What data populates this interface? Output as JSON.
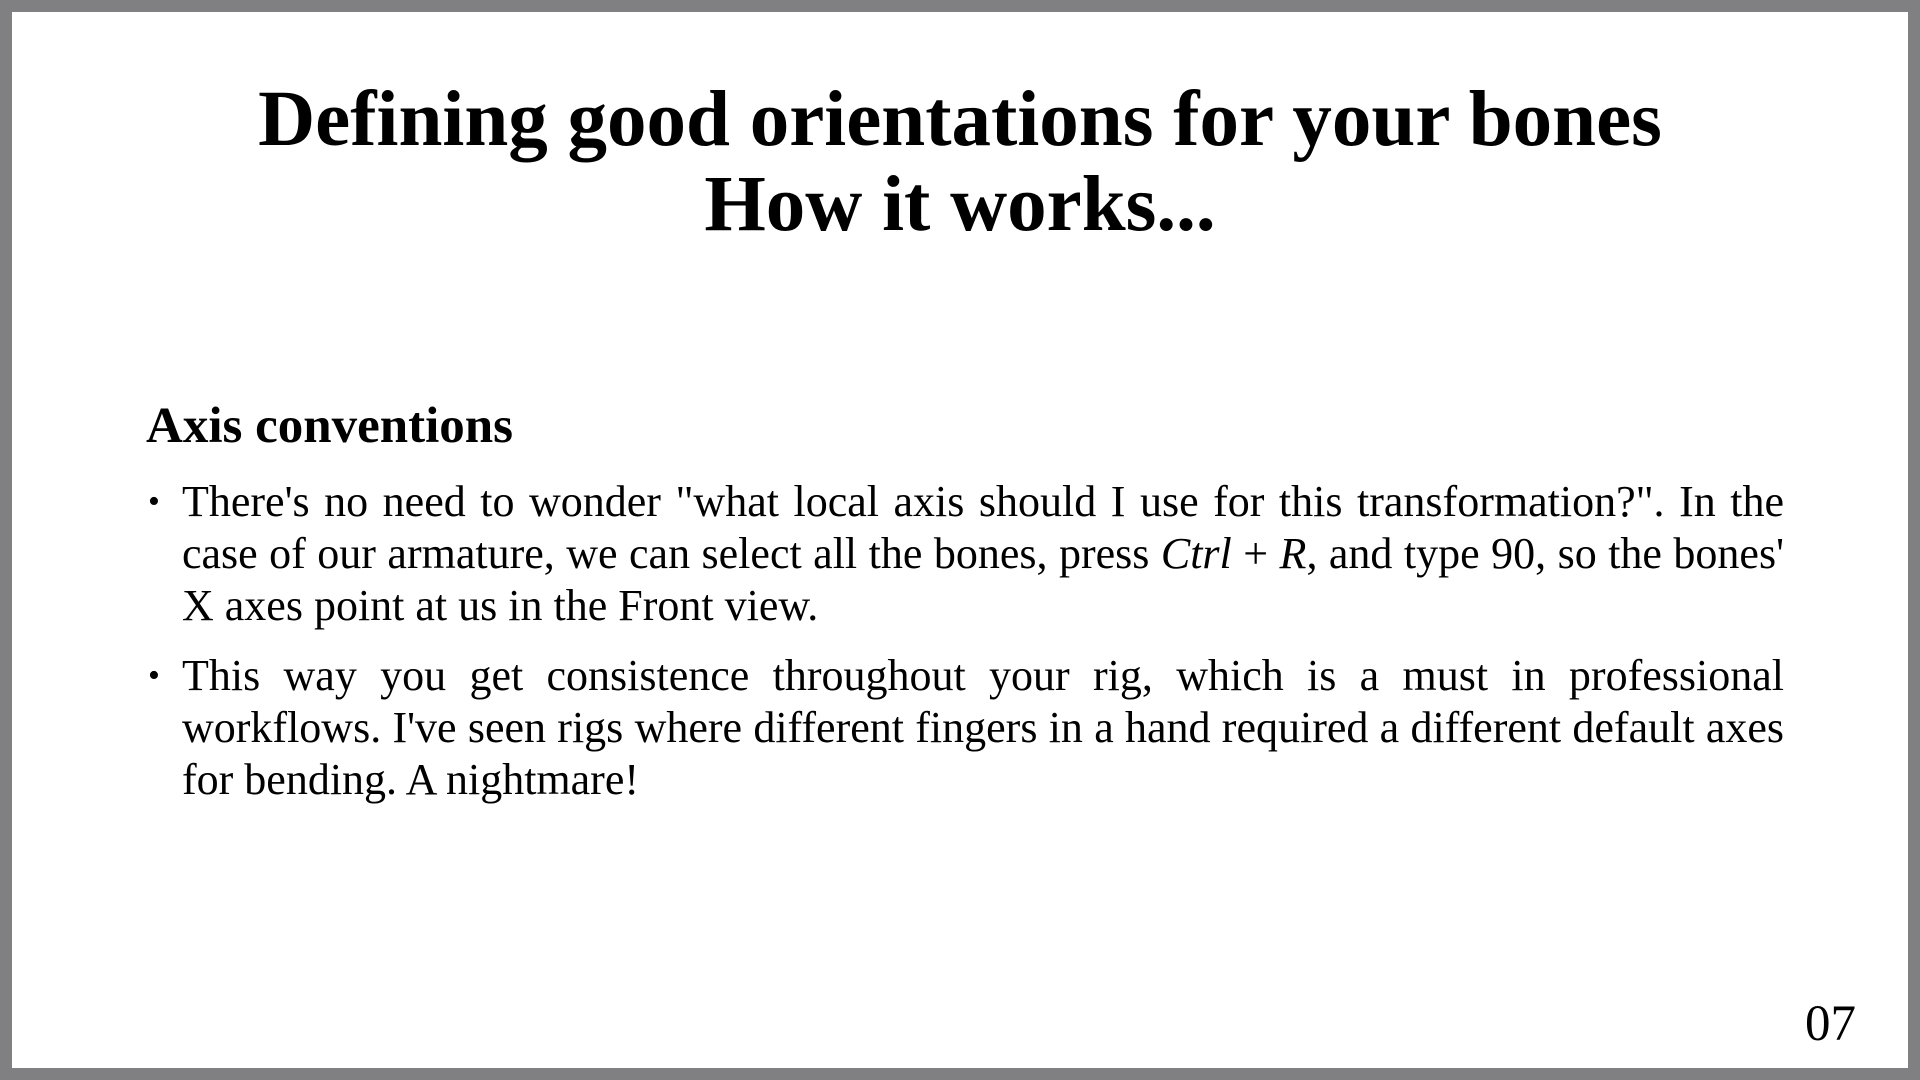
{
  "slide": {
    "title": "Defining good orientations for your bones",
    "subtitle": "How it works...",
    "section_heading": "Axis conventions",
    "bullet_marker": "•",
    "bullets": [
      {
        "text_before": "There's no need to wonder \"what local axis should I use for this transformation?\". In the case of our armature, we can select all the bones, press ",
        "key_1": "Ctrl",
        "key_join": " + ",
        "key_2": "R",
        "text_after": ", and type 90, so the bones' X axes point at us in the Front view."
      },
      {
        "text": "This way you get consistence throughout your rig, which is a must in professional workflows. I've seen rigs where different fingers in a hand required a different default axes for bending. A nightmare!"
      }
    ],
    "page_number": "07"
  },
  "colors": {
    "frame": "#808083",
    "background": "#ffffff",
    "text": "#000000"
  }
}
